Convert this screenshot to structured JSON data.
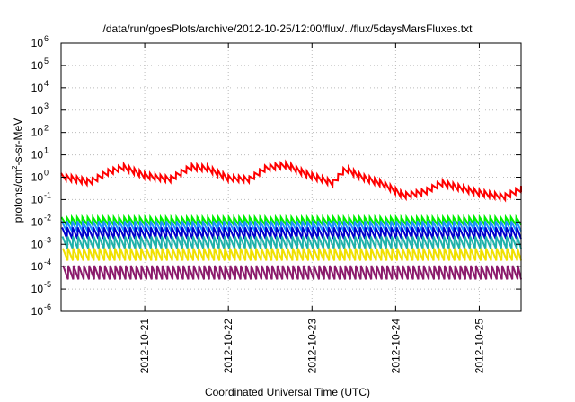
{
  "chart_data": {
    "type": "line",
    "title": "/data/run/goesPlots/archive/2012-10-25/12:00/flux/../flux/5daysMarsFluxes.txt",
    "xlabel": "Coordinated Universal Time (UTC)",
    "ylabel": {
      "base": "protons/cm",
      "sup": "2",
      "rest": "-s-sr-MeV"
    },
    "y_scale": "log",
    "ylim": [
      1e-06,
      1000000.0
    ],
    "y_ticks": [
      {
        "exp": "-6"
      },
      {
        "exp": "-5"
      },
      {
        "exp": "-4"
      },
      {
        "exp": "-3"
      },
      {
        "exp": "-2"
      },
      {
        "exp": "-1"
      },
      {
        "exp": "0"
      },
      {
        "exp": "1"
      },
      {
        "exp": "2"
      },
      {
        "exp": "3"
      },
      {
        "exp": "4"
      },
      {
        "exp": "5"
      },
      {
        "exp": "6"
      }
    ],
    "x_ticks": [
      "2012-10-21",
      "2012-10-22",
      "2012-10-23",
      "2012-10-24",
      "2012-10-25"
    ],
    "xlim": [
      "2012-10-20T00:00",
      "2012-10-25T12:00"
    ],
    "grid": true,
    "series_note": "sawtooth curves, each decaying between periodic ~1.5-hour jumps",
    "series": [
      {
        "color": "#ff0000",
        "trend": [
          [
            0,
            1.1
          ],
          [
            0.35,
            0.6
          ],
          [
            0.55,
            1.6
          ],
          [
            0.75,
            2.8
          ],
          [
            1.0,
            1.2
          ],
          [
            1.3,
            0.8
          ],
          [
            1.55,
            2.8
          ],
          [
            1.75,
            2.5
          ],
          [
            2.0,
            0.9
          ],
          [
            2.25,
            0.8
          ],
          [
            2.45,
            2.6
          ],
          [
            2.7,
            3.5
          ],
          [
            2.95,
            1.3
          ],
          [
            3.25,
            0.55
          ],
          [
            3.4,
            2.4
          ],
          [
            3.6,
            1.0
          ],
          [
            3.85,
            0.5
          ],
          [
            4.1,
            0.15
          ],
          [
            4.35,
            0.22
          ],
          [
            4.55,
            0.55
          ],
          [
            4.75,
            0.35
          ],
          [
            5.0,
            0.2
          ],
          [
            5.3,
            0.13
          ],
          [
            5.5,
            0.3
          ]
        ],
        "amp": 1.9
      },
      {
        "color": "#00ee00",
        "trend": [
          [
            0,
            0.011
          ],
          [
            5.5,
            0.011
          ]
        ],
        "amp": 2.2
      },
      {
        "color": "#1e90ff",
        "trend": [
          [
            0,
            0.0065
          ],
          [
            5.5,
            0.0065
          ]
        ],
        "amp": 2.8
      },
      {
        "color": "#0000cd",
        "trend": [
          [
            0,
            0.0032
          ],
          [
            5.5,
            0.0032
          ]
        ],
        "amp": 3.2
      },
      {
        "color": "#20b2aa",
        "trend": [
          [
            0,
            0.0012
          ],
          [
            5.5,
            0.0012
          ]
        ],
        "amp": 3.5
      },
      {
        "color": "#f0e000",
        "trend": [
          [
            0,
            0.00035
          ],
          [
            5.5,
            0.00035
          ]
        ],
        "amp": 3.5
      },
      {
        "color": "#8b1a6b",
        "trend": [
          [
            0,
            5.5e-05
          ],
          [
            5.5,
            5.5e-05
          ]
        ],
        "amp": 4.2
      }
    ]
  }
}
